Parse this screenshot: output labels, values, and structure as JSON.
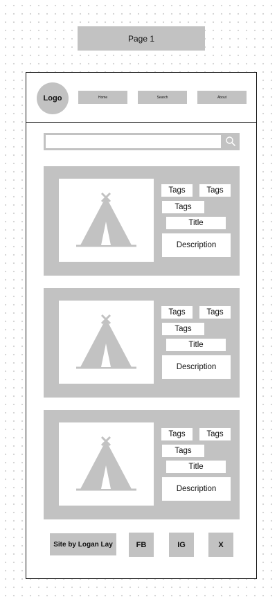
{
  "canvas": {
    "page_label": "Page 1"
  },
  "header": {
    "logo": "Logo",
    "nav": [
      {
        "label": "Home"
      },
      {
        "label": "Search"
      },
      {
        "label": "About"
      }
    ]
  },
  "search": {
    "placeholder": "",
    "value": "",
    "icon": "search-icon"
  },
  "cards": [
    {
      "tags": [
        "Tags",
        "Tags",
        "Tags"
      ],
      "title": "Title",
      "description": "Description",
      "image_icon": "tent-icon"
    },
    {
      "tags": [
        "Tags",
        "Tags",
        "Tags"
      ],
      "title": "Title",
      "description": "Description",
      "image_icon": "tent-icon"
    },
    {
      "tags": [
        "Tags",
        "Tags",
        "Tags"
      ],
      "title": "Title",
      "description": "Description",
      "image_icon": "tent-icon"
    }
  ],
  "footer": {
    "credit": "Site by Logan Lay",
    "social": [
      {
        "label": "FB"
      },
      {
        "label": "IG"
      },
      {
        "label": "X"
      }
    ]
  },
  "colors": {
    "placeholder_gray": "#c2c2c2",
    "outline": "#111111",
    "background": "#ffffff"
  }
}
